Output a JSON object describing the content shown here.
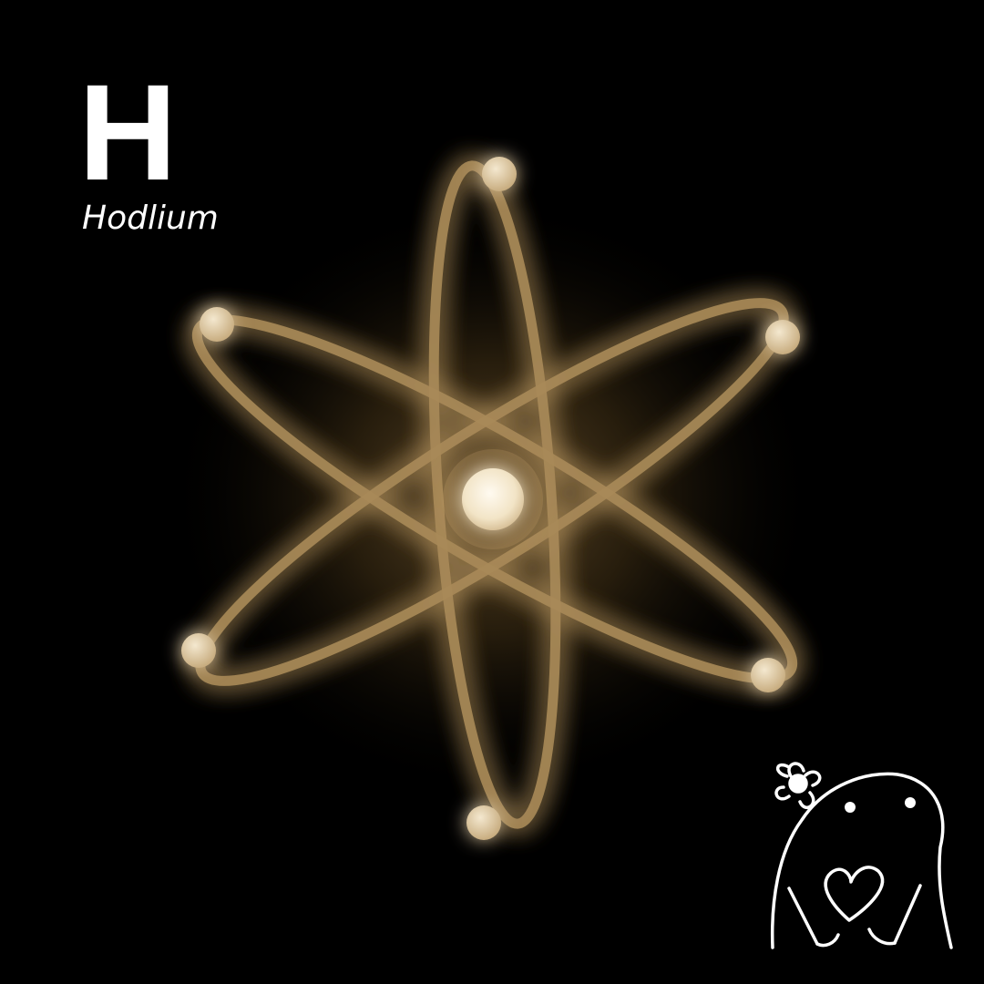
{
  "element": {
    "symbol": "H",
    "name": "Hodlium"
  },
  "colors": {
    "background": "#000000",
    "orbit": "#a88a58",
    "glow": "#8a6a2a",
    "nucleus": "#f6ecd6",
    "text": "#ffffff"
  },
  "icons": {
    "atom": "atom-icon",
    "mascot": "flower-ghost-heart-mascot"
  }
}
